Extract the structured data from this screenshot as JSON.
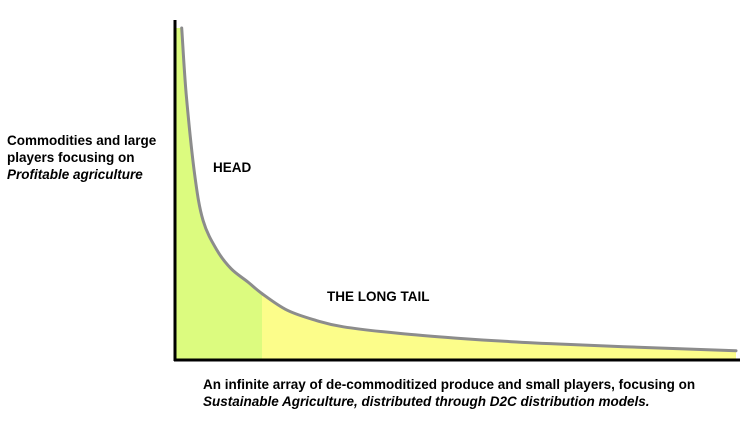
{
  "chart_data": {
    "type": "area",
    "title": "",
    "ylabel_lines": [
      "Commodities and large",
      "players focusing on"
    ],
    "ylabel_italic": "Profitable agriculture",
    "xlabel_line1": "An infinite array of de-commoditized produce and small players, focusing on",
    "xlabel_italic": "Sustainable Agriculture, distributed through D2C distribution models.",
    "regions": [
      {
        "label": "HEAD",
        "color": "#dcfb7f",
        "x_range": [
          0,
          0.155
        ]
      },
      {
        "label": "THE LONG TAIL",
        "color": "#fcfd8a",
        "x_range": [
          0.155,
          1.0
        ]
      }
    ],
    "curve": {
      "x": [
        0.012,
        0.02,
        0.035,
        0.05,
        0.075,
        0.1,
        0.13,
        0.155,
        0.2,
        0.25,
        0.3,
        0.4,
        0.5,
        0.6,
        0.7,
        0.8,
        0.9,
        1.0
      ],
      "y": [
        1.0,
        0.8,
        0.56,
        0.42,
        0.33,
        0.275,
        0.235,
        0.2,
        0.15,
        0.12,
        0.1,
        0.08,
        0.066,
        0.055,
        0.047,
        0.04,
        0.034,
        0.028
      ]
    },
    "xlim": [
      0,
      1
    ],
    "ylim": [
      0,
      1
    ],
    "grid": false,
    "legend": "none",
    "curve_color": "#8c8c8c",
    "axis_color": "#000000"
  }
}
